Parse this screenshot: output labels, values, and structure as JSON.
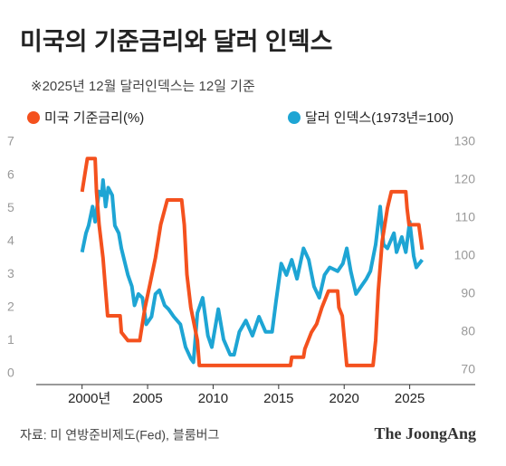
{
  "chart_data": {
    "type": "line",
    "title": "미국의 기준금리와 달러 인덱스",
    "subtitle": "※2025년 12월 달러인덱스는 12일 기준",
    "source": "자료: 미 연방준비제도(Fed), 블룸버그",
    "logo": "The JoongAng",
    "xlim": [
      1996.5,
      2030
    ],
    "xticks": [
      {
        "value": 2000,
        "label": "2000년"
      },
      2005,
      2010,
      2015,
      2020,
      2025
    ],
    "ylim": [
      0,
      7
    ],
    "yticks": [
      0,
      1,
      2,
      3,
      4,
      5,
      6,
      7
    ],
    "y2lim": [
      69,
      130
    ],
    "y2ticks": [
      70,
      80,
      90,
      100,
      110,
      120,
      130
    ],
    "series": [
      {
        "name": "미국 기준금리(%)",
        "color": "#f4511e",
        "x": [
          2000.0,
          2000.2,
          2000.4,
          2001.0,
          2001.1,
          2001.3,
          2001.6,
          2001.8,
          2001.95,
          2002.9,
          2003.0,
          2003.5,
          2004.4,
          2004.5,
          2004.8,
          2005.2,
          2005.6,
          2006.0,
          2006.5,
          2007.6,
          2007.8,
          2008.0,
          2008.3,
          2008.8,
          2008.95,
          2015.9,
          2016.0,
          2016.9,
          2017.0,
          2017.5,
          2017.9,
          2018.3,
          2018.8,
          2019.5,
          2019.6,
          2019.85,
          2020.2,
          2022.2,
          2022.4,
          2022.6,
          2022.9,
          2023.3,
          2023.6,
          2024.7,
          2024.8,
          2024.95,
          2025.7,
          2025.95
        ],
        "values": [
          5.5,
          6.0,
          6.5,
          6.5,
          5.5,
          4.5,
          3.5,
          2.5,
          1.75,
          1.75,
          1.25,
          1.0,
          1.0,
          1.25,
          2.0,
          2.75,
          3.5,
          4.5,
          5.25,
          5.25,
          4.5,
          3.0,
          2.0,
          1.0,
          0.25,
          0.25,
          0.5,
          0.5,
          0.75,
          1.25,
          1.5,
          2.0,
          2.5,
          2.5,
          2.0,
          1.75,
          0.25,
          0.25,
          1.0,
          2.5,
          4.0,
          5.0,
          5.5,
          5.5,
          5.0,
          4.5,
          4.5,
          3.75
        ]
      },
      {
        "name": "달러 인덱스(1973년=100)",
        "color": "#1ea5d4",
        "axis": "y2",
        "x": [
          2000.0,
          2000.3,
          2000.5,
          2000.8,
          2001.0,
          2001.3,
          2001.5,
          2001.6,
          2001.8,
          2002.0,
          2002.3,
          2002.5,
          2002.8,
          2003.0,
          2003.5,
          2003.8,
          2004.0,
          2004.3,
          2004.6,
          2004.9,
          2005.3,
          2005.6,
          2005.9,
          2006.3,
          2006.6,
          2007.0,
          2007.5,
          2007.9,
          2008.3,
          2008.5,
          2008.8,
          2009.2,
          2009.6,
          2009.9,
          2010.4,
          2010.8,
          2011.3,
          2011.6,
          2012.0,
          2012.5,
          2013.0,
          2013.5,
          2014.0,
          2014.5,
          2014.8,
          2015.2,
          2015.6,
          2016.0,
          2016.4,
          2016.9,
          2017.3,
          2017.7,
          2018.1,
          2018.5,
          2018.9,
          2019.5,
          2019.9,
          2020.2,
          2020.5,
          2020.9,
          2021.3,
          2021.7,
          2022.0,
          2022.4,
          2022.75,
          2023.0,
          2023.3,
          2023.8,
          2024.0,
          2024.4,
          2024.7,
          2025.0,
          2025.3,
          2025.5,
          2025.95
        ],
        "values": [
          101,
          106,
          108,
          113,
          109,
          117,
          116,
          120,
          113,
          118,
          116,
          108,
          106,
          102,
          95,
          92,
          87,
          90,
          89,
          82,
          84,
          90,
          91,
          87,
          86,
          84,
          82,
          76,
          73,
          72,
          85,
          89,
          79,
          76,
          86,
          78,
          74,
          74,
          80,
          83,
          79,
          84,
          80,
          80,
          88,
          98,
          95,
          99,
          94,
          102,
          99,
          92,
          89,
          95,
          97,
          96,
          98,
          102,
          96,
          90,
          92,
          94,
          96,
          103,
          113,
          103,
          102,
          106,
          101,
          105,
          101,
          109,
          100,
          97,
          99
        ]
      }
    ]
  }
}
